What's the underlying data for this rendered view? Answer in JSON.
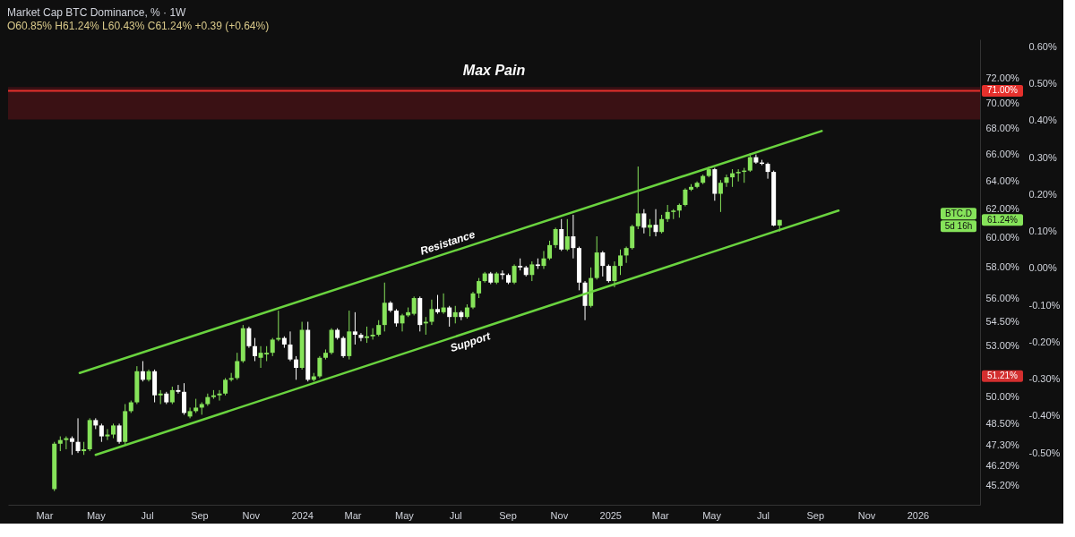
{
  "chart_data": {
    "type": "candlestick",
    "title": "Market Cap BTC Dominance, % · 1W",
    "subtitle": "O60.85% H61.24% L60.43% C61.24% +0.39 (+0.64%)",
    "x": [
      "2023-03-13",
      "2023-03-20",
      "2023-03-27",
      "2023-04-03",
      "2023-04-10",
      "2023-04-17",
      "2023-04-24",
      "2023-05-01",
      "2023-05-08",
      "2023-05-15",
      "2023-05-22",
      "2023-05-29",
      "2023-06-05",
      "2023-06-12",
      "2023-06-19",
      "2023-06-26",
      "2023-07-03",
      "2023-07-10",
      "2023-07-17",
      "2023-07-24",
      "2023-07-31",
      "2023-08-07",
      "2023-08-14",
      "2023-08-21",
      "2023-08-28",
      "2023-09-04",
      "2023-09-11",
      "2023-09-18",
      "2023-09-25",
      "2023-10-02",
      "2023-10-09",
      "2023-10-16",
      "2023-10-23",
      "2023-10-30",
      "2023-11-06",
      "2023-11-13",
      "2023-11-20",
      "2023-11-27",
      "2023-12-04",
      "2023-12-11",
      "2023-12-18",
      "2023-12-25",
      "2024-01-01",
      "2024-01-08",
      "2024-01-15",
      "2024-01-22",
      "2024-01-29",
      "2024-02-05",
      "2024-02-12",
      "2024-02-19",
      "2024-02-26",
      "2024-03-04",
      "2024-03-11",
      "2024-03-18",
      "2024-03-25",
      "2024-04-01",
      "2024-04-08",
      "2024-04-15",
      "2024-04-22",
      "2024-04-29",
      "2024-05-06",
      "2024-05-13",
      "2024-05-20",
      "2024-05-27",
      "2024-06-03",
      "2024-06-10",
      "2024-06-17",
      "2024-06-24",
      "2024-07-01",
      "2024-07-08",
      "2024-07-15",
      "2024-07-22",
      "2024-07-29",
      "2024-08-05",
      "2024-08-12",
      "2024-08-19",
      "2024-08-26",
      "2024-09-02",
      "2024-09-09",
      "2024-09-16",
      "2024-09-23",
      "2024-09-30",
      "2024-10-07",
      "2024-10-14",
      "2024-10-21",
      "2024-10-28",
      "2024-11-04",
      "2024-11-11",
      "2024-11-18",
      "2024-11-25",
      "2024-12-02",
      "2024-12-09",
      "2024-12-16",
      "2024-12-23",
      "2024-12-30",
      "2025-01-06",
      "2025-01-13",
      "2025-01-20",
      "2025-01-27",
      "2025-02-03",
      "2025-02-10",
      "2025-02-17",
      "2025-02-24",
      "2025-03-03",
      "2025-03-10",
      "2025-03-17",
      "2025-03-24",
      "2025-03-31",
      "2025-04-07",
      "2025-04-14",
      "2025-04-21",
      "2025-04-28",
      "2025-05-05",
      "2025-05-12",
      "2025-05-19",
      "2025-05-26",
      "2025-06-02",
      "2025-06-09",
      "2025-06-16",
      "2025-06-23",
      "2025-06-30",
      "2025-07-07",
      "2025-07-14",
      "2025-07-21"
    ],
    "ohlc": [
      [
        45.0,
        47.5,
        44.9,
        47.4
      ],
      [
        47.4,
        47.8,
        47.0,
        47.6
      ],
      [
        47.6,
        47.8,
        47.1,
        47.7
      ],
      [
        47.7,
        47.8,
        46.8,
        47.5
      ],
      [
        47.5,
        48.8,
        46.9,
        47.0
      ],
      [
        47.0,
        47.5,
        46.8,
        47.1
      ],
      [
        47.1,
        48.8,
        47.0,
        48.7
      ],
      [
        48.7,
        48.8,
        48.2,
        48.4
      ],
      [
        48.4,
        48.5,
        47.5,
        47.8
      ],
      [
        47.8,
        48.2,
        47.6,
        47.9
      ],
      [
        47.9,
        48.5,
        47.7,
        48.4
      ],
      [
        48.4,
        48.5,
        47.4,
        47.5
      ],
      [
        47.5,
        49.6,
        47.3,
        49.2
      ],
      [
        49.2,
        49.8,
        49.1,
        49.7
      ],
      [
        49.7,
        51.8,
        49.6,
        51.5
      ],
      [
        51.5,
        52.1,
        50.9,
        51.0
      ],
      [
        51.0,
        51.6,
        50.9,
        51.5
      ],
      [
        51.5,
        51.6,
        49.7,
        50.1
      ],
      [
        50.1,
        50.4,
        49.6,
        50.2
      ],
      [
        50.2,
        50.3,
        49.6,
        49.7
      ],
      [
        49.7,
        50.6,
        49.6,
        50.4
      ],
      [
        50.4,
        50.7,
        50.2,
        50.3
      ],
      [
        50.3,
        50.8,
        49.0,
        49.1
      ],
      [
        48.9,
        49.4,
        48.8,
        49.2
      ],
      [
        49.2,
        49.9,
        49.1,
        49.4
      ],
      [
        49.4,
        49.7,
        49.0,
        49.6
      ],
      [
        49.6,
        50.2,
        49.5,
        50.0
      ],
      [
        50.0,
        50.4,
        49.9,
        50.1
      ],
      [
        50.1,
        50.4,
        49.8,
        50.2
      ],
      [
        50.2,
        51.1,
        50.1,
        51.0
      ],
      [
        51.0,
        51.4,
        50.9,
        51.1
      ],
      [
        51.1,
        52.6,
        51.0,
        52.1
      ],
      [
        52.1,
        54.3,
        52.0,
        54.1
      ],
      [
        54.1,
        54.2,
        52.9,
        53.0
      ],
      [
        53.0,
        53.5,
        52.1,
        52.4
      ],
      [
        52.3,
        53.0,
        51.7,
        52.6
      ],
      [
        52.5,
        53.0,
        52.1,
        52.6
      ],
      [
        52.6,
        53.5,
        52.4,
        53.4
      ],
      [
        53.4,
        55.2,
        53.3,
        53.5
      ],
      [
        53.5,
        53.6,
        52.9,
        53.1
      ],
      [
        53.1,
        53.9,
        52.1,
        52.2
      ],
      [
        52.2,
        52.4,
        51.0,
        51.7
      ],
      [
        51.7,
        54.5,
        51.6,
        54.0
      ],
      [
        54.0,
        54.5,
        50.9,
        51.0
      ],
      [
        51.0,
        51.4,
        50.9,
        51.2
      ],
      [
        51.2,
        52.4,
        51.1,
        52.3
      ],
      [
        52.3,
        52.8,
        52.2,
        52.6
      ],
      [
        52.6,
        54.1,
        52.5,
        54.0
      ],
      [
        54.0,
        54.1,
        53.4,
        53.5
      ],
      [
        53.5,
        53.6,
        52.3,
        52.4
      ],
      [
        52.4,
        55.2,
        52.2,
        53.9
      ],
      [
        53.9,
        55.1,
        53.1,
        53.7
      ],
      [
        53.7,
        53.8,
        53.3,
        53.5
      ],
      [
        53.5,
        54.2,
        53.2,
        53.6
      ],
      [
        53.6,
        54.1,
        53.4,
        53.7
      ],
      [
        53.7,
        54.6,
        53.6,
        54.3
      ],
      [
        54.3,
        57.0,
        53.9,
        55.7
      ],
      [
        55.7,
        55.8,
        55.1,
        55.2
      ],
      [
        55.2,
        55.3,
        54.2,
        54.4
      ],
      [
        54.4,
        55.0,
        53.9,
        54.9
      ],
      [
        54.9,
        55.4,
        54.8,
        55.1
      ],
      [
        55.0,
        56.1,
        54.9,
        56.0
      ],
      [
        56.0,
        56.1,
        53.9,
        54.3
      ],
      [
        54.4,
        54.8,
        53.7,
        54.5
      ],
      [
        54.5,
        55.9,
        54.3,
        55.3
      ],
      [
        55.3,
        56.2,
        55.0,
        55.1
      ],
      [
        55.1,
        56.3,
        55.0,
        55.4
      ],
      [
        55.4,
        55.5,
        54.2,
        54.8
      ],
      [
        54.8,
        55.5,
        54.4,
        55.1
      ],
      [
        55.1,
        55.2,
        54.6,
        54.8
      ],
      [
        54.8,
        55.6,
        54.7,
        55.4
      ],
      [
        55.4,
        56.4,
        55.3,
        56.3
      ],
      [
        56.3,
        57.3,
        56.0,
        57.1
      ],
      [
        57.1,
        57.7,
        57.0,
        57.6
      ],
      [
        57.6,
        57.7,
        56.9,
        57.0
      ],
      [
        57.0,
        57.7,
        56.9,
        57.6
      ],
      [
        57.6,
        57.8,
        57.2,
        57.5
      ],
      [
        57.5,
        57.6,
        56.9,
        57.0
      ],
      [
        57.0,
        58.2,
        56.9,
        58.1
      ],
      [
        58.1,
        58.6,
        57.8,
        58.0
      ],
      [
        58.0,
        58.1,
        57.4,
        57.5
      ],
      [
        57.5,
        58.4,
        57.1,
        58.2
      ],
      [
        58.2,
        58.6,
        57.9,
        58.1
      ],
      [
        58.1,
        59.1,
        57.9,
        58.6
      ],
      [
        58.6,
        59.8,
        58.5,
        59.5
      ],
      [
        59.5,
        60.7,
        59.3,
        60.6
      ],
      [
        60.6,
        61.3,
        59.1,
        59.2
      ],
      [
        59.2,
        61.3,
        59.1,
        60.1
      ],
      [
        60.1,
        61.6,
        58.6,
        59.3
      ],
      [
        59.3,
        59.4,
        56.5,
        57.0
      ],
      [
        57.0,
        57.1,
        54.6,
        55.5
      ],
      [
        55.5,
        58.0,
        55.4,
        57.3
      ],
      [
        57.3,
        60.1,
        57.2,
        59.0
      ],
      [
        59.0,
        59.1,
        57.4,
        58.1
      ],
      [
        58.1,
        58.2,
        57.0,
        57.1
      ],
      [
        57.1,
        58.4,
        56.7,
        58.1
      ],
      [
        58.1,
        59.2,
        57.5,
        58.8
      ],
      [
        58.8,
        59.4,
        58.3,
        59.3
      ],
      [
        59.3,
        60.9,
        59.2,
        60.8
      ],
      [
        60.8,
        65.1,
        60.6,
        61.7
      ],
      [
        61.7,
        62.0,
        60.3,
        60.7
      ],
      [
        60.7,
        61.3,
        60.1,
        60.9
      ],
      [
        60.9,
        62.0,
        60.1,
        60.4
      ],
      [
        60.4,
        61.6,
        60.3,
        61.3
      ],
      [
        61.3,
        62.3,
        61.1,
        61.8
      ],
      [
        61.8,
        62.0,
        61.3,
        61.9
      ],
      [
        61.9,
        62.4,
        61.4,
        62.3
      ],
      [
        62.3,
        63.5,
        62.2,
        63.4
      ],
      [
        63.4,
        63.8,
        63.3,
        63.6
      ],
      [
        63.6,
        64.0,
        63.5,
        63.9
      ],
      [
        63.9,
        64.5,
        63.8,
        64.4
      ],
      [
        64.4,
        65.1,
        64.3,
        64.9
      ],
      [
        64.9,
        65.0,
        62.6,
        63.1
      ],
      [
        63.1,
        64.1,
        61.8,
        63.9
      ],
      [
        63.9,
        64.5,
        63.6,
        64.3
      ],
      [
        64.3,
        64.9,
        63.6,
        64.6
      ],
      [
        64.6,
        64.9,
        64.0,
        64.7
      ],
      [
        64.7,
        65.0,
        63.9,
        64.8
      ],
      [
        64.8,
        66.1,
        64.7,
        65.8
      ],
      [
        65.8,
        66.0,
        65.3,
        65.4
      ],
      [
        65.4,
        65.6,
        65.2,
        65.3
      ],
      [
        65.3,
        65.4,
        64.2,
        64.7
      ],
      [
        64.7,
        64.8,
        60.8,
        60.85
      ],
      [
        60.85,
        61.24,
        60.43,
        61.24
      ]
    ],
    "colors": [
      "#86e35a",
      "#86e35a",
      "#86e35a",
      "#ffffff",
      "#ffffff",
      "#86e35a",
      "#86e35a",
      "#ffffff",
      "#ffffff",
      "#86e35a",
      "#86e35a",
      "#ffffff",
      "#86e35a",
      "#86e35a",
      "#86e35a",
      "#ffffff",
      "#86e35a",
      "#ffffff",
      "#86e35a",
      "#ffffff",
      "#86e35a",
      "#ffffff",
      "#ffffff",
      "#86e35a",
      "#86e35a",
      "#86e35a",
      "#86e35a",
      "#86e35a",
      "#86e35a",
      "#86e35a",
      "#86e35a",
      "#86e35a",
      "#86e35a",
      "#ffffff",
      "#ffffff",
      "#86e35a",
      "#86e35a",
      "#86e35a",
      "#86e35a",
      "#ffffff",
      "#ffffff",
      "#ffffff",
      "#86e35a",
      "#ffffff",
      "#86e35a",
      "#86e35a",
      "#86e35a",
      "#86e35a",
      "#ffffff",
      "#ffffff",
      "#86e35a",
      "#ffffff",
      "#ffffff",
      "#86e35a",
      "#86e35a",
      "#86e35a",
      "#86e35a",
      "#ffffff",
      "#ffffff",
      "#86e35a",
      "#86e35a",
      "#86e35a",
      "#ffffff",
      "#86e35a",
      "#86e35a",
      "#ffffff",
      "#86e35a",
      "#ffffff",
      "#86e35a",
      "#ffffff",
      "#86e35a",
      "#86e35a",
      "#86e35a",
      "#86e35a",
      "#ffffff",
      "#86e35a",
      "#ffffff",
      "#ffffff",
      "#86e35a",
      "#ffffff",
      "#ffffff",
      "#86e35a",
      "#ffffff",
      "#86e35a",
      "#86e35a",
      "#86e35a",
      "#ffffff",
      "#86e35a",
      "#ffffff",
      "#ffffff",
      "#ffffff",
      "#86e35a",
      "#86e35a",
      "#ffffff",
      "#ffffff",
      "#86e35a",
      "#86e35a",
      "#86e35a",
      "#86e35a",
      "#86e35a",
      "#ffffff",
      "#86e35a",
      "#ffffff",
      "#86e35a",
      "#86e35a",
      "#86e35a",
      "#86e35a",
      "#86e35a",
      "#86e35a",
      "#86e35a",
      "#86e35a",
      "#86e35a",
      "#ffffff",
      "#86e35a",
      "#86e35a",
      "#86e35a",
      "#86e35a",
      "#86e35a",
      "#86e35a",
      "#ffffff",
      "#ffffff",
      "#ffffff",
      "#ffffff",
      "#86e35a"
    ],
    "series": [
      {
        "name": "Resistance",
        "type": "line",
        "color": "#6ad33f",
        "x": [
          "2023-04-12",
          "2025-09-09"
        ],
        "values": [
          51.4,
          67.8
        ]
      },
      {
        "name": "Support",
        "type": "line",
        "color": "#6ad33f",
        "x": [
          "2023-05-01",
          "2025-09-29"
        ],
        "values": [
          46.8,
          61.9
        ]
      }
    ],
    "xlim": [
      "2023-01-17",
      "2026-03-16"
    ],
    "xticks": [
      {
        "value": "2023-03-01",
        "label": "Mar"
      },
      {
        "value": "2023-05-01",
        "label": "May"
      },
      {
        "value": "2023-07-01",
        "label": "Jul"
      },
      {
        "value": "2023-09-01",
        "label": "Sep"
      },
      {
        "value": "2023-11-01",
        "label": "Nov"
      },
      {
        "value": "2024-01-01",
        "label": "2024"
      },
      {
        "value": "2024-03-01",
        "label": "Mar"
      },
      {
        "value": "2024-05-01",
        "label": "May"
      },
      {
        "value": "2024-07-01",
        "label": "Jul"
      },
      {
        "value": "2024-09-01",
        "label": "Sep"
      },
      {
        "value": "2024-11-01",
        "label": "Nov"
      },
      {
        "value": "2025-01-01",
        "label": "2025"
      },
      {
        "value": "2025-03-01",
        "label": "Mar"
      },
      {
        "value": "2025-05-01",
        "label": "May"
      },
      {
        "value": "2025-07-01",
        "label": "Jul"
      },
      {
        "value": "2025-09-01",
        "label": "Sep"
      },
      {
        "value": "2025-11-01",
        "label": "Nov"
      },
      {
        "value": "2026-01-01",
        "label": "2026"
      }
    ],
    "log": "y",
    "ylim": [
      44.2,
      75.3
    ],
    "yticks": [
      {
        "value": 45.2,
        "label": "45.20%"
      },
      {
        "value": 46.2,
        "label": "46.20%"
      },
      {
        "value": 47.3,
        "label": "47.30%"
      },
      {
        "value": 48.5,
        "label": "48.50%"
      },
      {
        "value": 50,
        "label": "50.00%"
      },
      {
        "value": 53,
        "label": "53.00%"
      },
      {
        "value": 54.5,
        "label": "54.50%"
      },
      {
        "value": 56,
        "label": "56.00%"
      },
      {
        "value": 58,
        "label": "58.00%"
      },
      {
        "value": 60,
        "label": "60.00%"
      },
      {
        "value": 62,
        "label": "62.00%"
      },
      {
        "value": 64,
        "label": "64.00%"
      },
      {
        "value": 66,
        "label": "66.00%"
      },
      {
        "value": 68,
        "label": "68.00%"
      },
      {
        "value": 70,
        "label": "70.00%"
      },
      {
        "value": 72,
        "label": "72.00%"
      }
    ],
    "y2lim": [
      -0.64,
      0.62
    ],
    "y2ticks": [
      {
        "value": 0.6,
        "label": "0.60%"
      },
      {
        "value": 0.5,
        "label": "0.50%"
      },
      {
        "value": 0.4,
        "label": "0.40%"
      },
      {
        "value": 0.3,
        "label": "0.30%"
      },
      {
        "value": 0.2,
        "label": "0.20%"
      },
      {
        "value": 0.1,
        "label": "0.10%"
      },
      {
        "value": 0,
        "label": "0.00%"
      },
      {
        "value": -0.1,
        "label": "-0.10%"
      },
      {
        "value": -0.2,
        "label": "-0.20%"
      },
      {
        "value": -0.3,
        "label": "-0.30%"
      },
      {
        "value": -0.4,
        "label": "-0.40%"
      },
      {
        "value": -0.5,
        "label": "-0.50%"
      }
    ],
    "bands": [
      {
        "axis": "y",
        "from": 68.7,
        "to": 71.3,
        "label": "Max Pain",
        "color": "#3a1114"
      }
    ],
    "ref_lines": [
      {
        "axis": "y",
        "value": 71,
        "label": "71.00%",
        "color": "#e5302c"
      }
    ],
    "annotations": [
      "51.21%",
      "BTC.D",
      "61.24%",
      "5d 16h"
    ],
    "grid": false
  }
}
